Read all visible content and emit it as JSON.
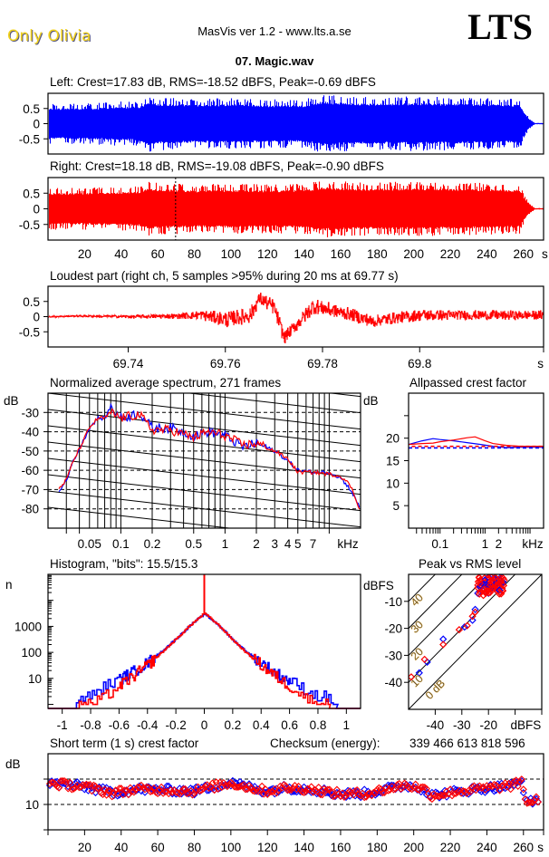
{
  "header": {
    "artist": "Only Olivia",
    "app_title": "MasVis ver 1.2 - www.lts.a.se",
    "logo": "LTS",
    "filename": "07. Magic.wav"
  },
  "colors": {
    "left": "#0000ff",
    "right": "#ff0000"
  },
  "chart_data": [
    {
      "id": "left-waveform",
      "type": "area",
      "title": "Left: Crest=17.83 dB, RMS=-18.52 dBFS, Peak=-0.69 dBFS",
      "channel": "left",
      "yticks": [
        "0.5",
        "0",
        "-0.5"
      ],
      "ytick_values": [
        0.5,
        0,
        -0.5
      ],
      "ylim": [
        -1,
        1
      ],
      "xlim": [
        0,
        271
      ],
      "envelope": {
        "x": [
          0,
          20,
          40,
          50,
          55,
          60,
          80,
          100,
          120,
          140,
          150,
          160,
          180,
          200,
          220,
          240,
          258,
          260,
          263,
          266,
          271
        ],
        "peak": [
          0.55,
          0.55,
          0.6,
          0.62,
          0.78,
          0.72,
          0.68,
          0.7,
          0.66,
          0.66,
          0.8,
          0.75,
          0.72,
          0.74,
          0.72,
          0.7,
          0.68,
          0.4,
          0.15,
          0.02,
          0.02
        ]
      }
    },
    {
      "id": "right-waveform",
      "type": "area",
      "title": "Right: Crest=18.18 dB, RMS=-19.08 dBFS, Peak=-0.90 dBFS",
      "channel": "right",
      "yticks": [
        "0.5",
        "0",
        "-0.5"
      ],
      "ytick_values": [
        0.5,
        0,
        -0.5
      ],
      "ylim": [
        -1,
        1
      ],
      "xlim": [
        0,
        271
      ],
      "marker_x": 69.77,
      "xticks": [
        "20",
        "40",
        "60",
        "80",
        "100",
        "120",
        "140",
        "160",
        "180",
        "200",
        "220",
        "240",
        "260",
        "s"
      ],
      "xtick_values": [
        20,
        40,
        60,
        80,
        100,
        120,
        140,
        160,
        180,
        200,
        220,
        240,
        260,
        271
      ],
      "envelope": {
        "x": [
          0,
          20,
          40,
          50,
          55,
          60,
          80,
          100,
          120,
          140,
          150,
          160,
          180,
          200,
          220,
          240,
          258,
          260,
          263,
          266,
          271
        ],
        "peak": [
          0.55,
          0.55,
          0.58,
          0.6,
          0.72,
          0.68,
          0.64,
          0.66,
          0.64,
          0.66,
          0.76,
          0.72,
          0.7,
          0.72,
          0.7,
          0.68,
          0.66,
          0.4,
          0.15,
          0.02,
          0.02
        ]
      }
    },
    {
      "id": "loudest-part",
      "type": "line",
      "title": "Loudest part (right ch, 5 samples >95% during 20 ms at 69.77 s)",
      "ylim": [
        -1,
        1
      ],
      "yticks": [
        "0.5",
        "0",
        "-0.5"
      ],
      "ytick_values": [
        0.5,
        0,
        -0.5
      ],
      "xlim": [
        69.7235,
        69.8255
      ],
      "xticks": [
        "69.74",
        "69.76",
        "69.78",
        "69.8",
        "s"
      ],
      "xtick_values": [
        69.74,
        69.76,
        69.78,
        69.8,
        69.8255
      ],
      "envelope": {
        "x": [
          69.7235,
          69.73,
          69.74,
          69.75,
          69.755,
          69.76,
          69.765,
          69.767,
          69.77,
          69.772,
          69.775,
          69.778,
          69.785,
          69.79,
          69.8,
          69.81,
          69.8255
        ],
        "center": [
          0,
          0.02,
          0.0,
          0.02,
          0.05,
          -0.1,
          0.05,
          0.6,
          0.3,
          -0.7,
          -0.2,
          0.35,
          0.1,
          -0.15,
          0.05,
          0.05,
          0.05
        ],
        "noise": [
          0.02,
          0.03,
          0.05,
          0.08,
          0.15,
          0.25,
          0.25,
          0.2,
          0.25,
          0.2,
          0.2,
          0.25,
          0.2,
          0.2,
          0.18,
          0.15,
          0.15
        ]
      }
    },
    {
      "id": "spectrum",
      "type": "line",
      "title": "Normalized average spectrum, 271 frames",
      "ylabel": "dB",
      "xlabel": "kHz",
      "xscale": "log",
      "xlim": [
        0.02,
        20
      ],
      "ylim": [
        -90,
        -20
      ],
      "yticks": [
        "-30",
        "-40",
        "-50",
        "-60",
        "-70",
        "-80"
      ],
      "ytick_values": [
        -30,
        -40,
        -50,
        -60,
        -70,
        -80
      ],
      "xticks": [
        "0.05",
        "0.1",
        "0.2",
        "0.5",
        "1",
        "2",
        "3",
        "4",
        "5",
        "7",
        "kHz"
      ],
      "xtick_values": [
        0.05,
        0.1,
        0.2,
        0.5,
        1,
        2,
        3,
        4,
        5,
        7,
        15
      ],
      "series": [
        {
          "name": "left",
          "x": [
            0.02,
            0.022,
            0.025,
            0.03,
            0.035,
            0.04,
            0.05,
            0.06,
            0.07,
            0.08,
            0.1,
            0.12,
            0.15,
            0.2,
            0.3,
            0.5,
            0.7,
            1,
            1.5,
            2,
            3,
            4,
            5,
            7,
            10,
            13,
            16,
            20
          ],
          "y": [
            -69,
            -75,
            -72,
            -65,
            -55,
            -49,
            -38,
            -33,
            -33,
            -27,
            -33,
            -32,
            -30,
            -38,
            -38,
            -42,
            -40,
            -42,
            -48,
            -46,
            -50,
            -55,
            -60,
            -61,
            -61,
            -64,
            -70,
            -80
          ]
        },
        {
          "name": "right",
          "x": [
            0.02,
            0.022,
            0.025,
            0.03,
            0.035,
            0.04,
            0.05,
            0.06,
            0.07,
            0.08,
            0.1,
            0.12,
            0.15,
            0.2,
            0.3,
            0.5,
            0.7,
            1,
            1.5,
            2,
            3,
            4,
            5,
            7,
            10,
            13,
            16,
            20
          ],
          "y": [
            -69,
            -71,
            -70,
            -65,
            -55,
            -49,
            -38,
            -33,
            -33,
            -30,
            -33,
            -32,
            -31,
            -39,
            -39,
            -43,
            -40,
            -42,
            -47,
            -46,
            -50,
            -54,
            -61,
            -61,
            -62,
            -63,
            -68,
            -81
          ]
        }
      ]
    },
    {
      "id": "allpassed-crest",
      "type": "line",
      "title": "Allpassed crest factor",
      "ylabel": "dB",
      "xlabel": "kHz",
      "xscale": "log",
      "xlim": [
        0.02,
        20
      ],
      "ylim": [
        0,
        30
      ],
      "yticks": [
        "20",
        "15",
        "10",
        "5"
      ],
      "ytick_values": [
        20,
        15,
        10,
        5
      ],
      "xticks": [
        "0.1",
        "1",
        "2",
        "kHz"
      ],
      "xtick_values": [
        0.1,
        1,
        2,
        12
      ],
      "series": [
        {
          "name": "left",
          "x": [
            0.02,
            0.04,
            0.07,
            0.1,
            0.2,
            0.4,
            0.8,
            1.5,
            3,
            6,
            20
          ],
          "y": [
            18.6,
            19.4,
            19.9,
            19.7,
            19.4,
            19.0,
            18.6,
            18.2,
            17.9,
            18.0,
            18.0
          ]
        },
        {
          "name": "right",
          "x": [
            0.02,
            0.04,
            0.07,
            0.1,
            0.2,
            0.4,
            0.6,
            1,
            1.5,
            3,
            6,
            20
          ],
          "y": [
            18.6,
            18.8,
            18.9,
            19.2,
            19.6,
            20.1,
            20.3,
            19.4,
            18.8,
            18.4,
            18.2,
            18.2
          ]
        },
        {
          "name": "left-overall",
          "dashed": true,
          "y_const": 17.83
        },
        {
          "name": "right-overall",
          "dashed": true,
          "y_const": 18.18
        }
      ]
    },
    {
      "id": "histogram",
      "type": "line",
      "title": "Histogram, \"bits\": 15.5/15.3",
      "ylabel": "n",
      "yscale": "log",
      "ylim": [
        0.7,
        100000
      ],
      "xlim": [
        -1.1,
        1.1
      ],
      "yticks": [
        "1000",
        "100",
        "10"
      ],
      "ytick_values": [
        1000,
        100,
        10
      ],
      "xticks": [
        "-1",
        "-0.8",
        "-0.6",
        "-0.4",
        "-0.2",
        "0",
        "0.2",
        "0.4",
        "0.6",
        "0.8",
        "1"
      ],
      "xtick_values": [
        -1,
        -0.8,
        -0.6,
        -0.4,
        -0.2,
        0,
        0.2,
        0.4,
        0.6,
        0.8,
        1
      ],
      "series": [
        {
          "name": "left",
          "x": [
            -0.9,
            -0.85,
            -0.8,
            -0.7,
            -0.6,
            -0.5,
            -0.4,
            -0.3,
            -0.2,
            -0.1,
            0,
            0.1,
            0.2,
            0.3,
            0.4,
            0.5,
            0.6,
            0.7,
            0.8,
            0.85,
            0.93
          ],
          "y": [
            1,
            2,
            2,
            5,
            9,
            18,
            40,
            110,
            330,
            1100,
            3000,
            1100,
            300,
            100,
            40,
            16,
            8,
            4,
            2,
            2,
            1
          ]
        },
        {
          "name": "right",
          "x": [
            -0.88,
            -0.83,
            -0.78,
            -0.7,
            -0.6,
            -0.5,
            -0.4,
            -0.3,
            -0.2,
            -0.1,
            0,
            0.1,
            0.2,
            0.3,
            0.4,
            0.5,
            0.6,
            0.7,
            0.8,
            0.85,
            0.88
          ],
          "y": [
            1,
            1,
            1,
            2,
            5,
            12,
            32,
            100,
            320,
            1100,
            3200,
            1100,
            300,
            90,
            32,
            12,
            5,
            2,
            1,
            1,
            1
          ]
        },
        {
          "name": "right-zero-spike",
          "x": [
            0
          ],
          "y": [
            100000
          ]
        }
      ]
    },
    {
      "id": "peak-vs-rms",
      "type": "scatter",
      "title": "Peak vs RMS level",
      "ylabel": "dBFS",
      "xlabel": "dBFS",
      "xlim": [
        -50,
        0
      ],
      "ylim": [
        -50,
        0
      ],
      "yticks": [
        "-10",
        "-20",
        "-30",
        "-40"
      ],
      "ytick_values": [
        -10,
        -20,
        -30,
        -40
      ],
      "xticks": [
        "-40",
        "-30",
        "-20",
        "dBFS"
      ],
      "xtick_values": [
        -40,
        -30,
        -20,
        -6
      ],
      "diagonal_labels": [
        "40",
        "30",
        "20",
        "10",
        "0 dB"
      ],
      "diagonal_values": [
        40,
        30,
        20,
        10,
        0
      ],
      "series": [
        {
          "name": "left",
          "x": [
            -46,
            -43,
            -37,
            -29,
            -26,
            -25,
            -24,
            -22,
            -21,
            -20,
            -19,
            -18,
            -17,
            -16,
            -15,
            -21,
            -19,
            -17,
            -23,
            -20,
            -18,
            -16
          ],
          "y": [
            -36.5,
            -32.5,
            -24,
            -19.5,
            -17,
            -13,
            -7,
            -6,
            -3,
            -1,
            -1,
            -1.5,
            -2,
            -3,
            -1,
            -5,
            -4,
            -6,
            -4,
            -7,
            -3,
            -2
          ]
        },
        {
          "name": "right",
          "x": [
            -49,
            -44,
            -37,
            -31,
            -28,
            -26,
            -25,
            -24,
            -23,
            -22,
            -21,
            -20,
            -19,
            -18,
            -17,
            -16,
            -15,
            -22,
            -20,
            -18,
            -16,
            -23,
            -21,
            -19,
            -17,
            -24,
            -20,
            -18
          ],
          "y": [
            -38,
            -31.5,
            -26,
            -20.5,
            -19,
            -15.5,
            -14,
            -4,
            -5,
            -3,
            -4,
            -2,
            -5,
            -3,
            -4,
            -2,
            -3,
            -6,
            -6,
            -5,
            -4,
            -2,
            -7,
            -1,
            -6,
            -5,
            -3,
            -2
          ]
        }
      ]
    },
    {
      "id": "short-term-crest",
      "type": "scatter",
      "title": "Short term (1 s) crest factor",
      "ylabel": "dB",
      "xlim": [
        0,
        271
      ],
      "ylim": [
        5,
        20
      ],
      "yticks": [
        "10"
      ],
      "ytick_values": [
        10
      ],
      "gridlines": [
        15,
        10
      ],
      "xticks": [
        "20",
        "40",
        "60",
        "80",
        "100",
        "120",
        "140",
        "160",
        "180",
        "200",
        "220",
        "240",
        "260",
        "s"
      ],
      "xtick_values": [
        20,
        40,
        60,
        80,
        100,
        120,
        140,
        160,
        180,
        200,
        220,
        240,
        260,
        271
      ],
      "trend": {
        "x": [
          0,
          20,
          35,
          50,
          70,
          80,
          90,
          100,
          110,
          120,
          130,
          145,
          160,
          175,
          185,
          195,
          205,
          210,
          225,
          240,
          255,
          259,
          262,
          266,
          270
        ],
        "y": [
          14.2,
          13.5,
          12.3,
          13.0,
          12.8,
          12.6,
          13.5,
          14.2,
          13.4,
          12.6,
          13.3,
          13.0,
          12.0,
          12.2,
          13.0,
          13.8,
          13.2,
          11.8,
          12.6,
          13.2,
          13.8,
          14.5,
          10.2,
          10.8,
          11.4
        ]
      }
    }
  ],
  "checksum": {
    "label": "Checksum (energy):",
    "value": "339 466 613 818 596"
  }
}
